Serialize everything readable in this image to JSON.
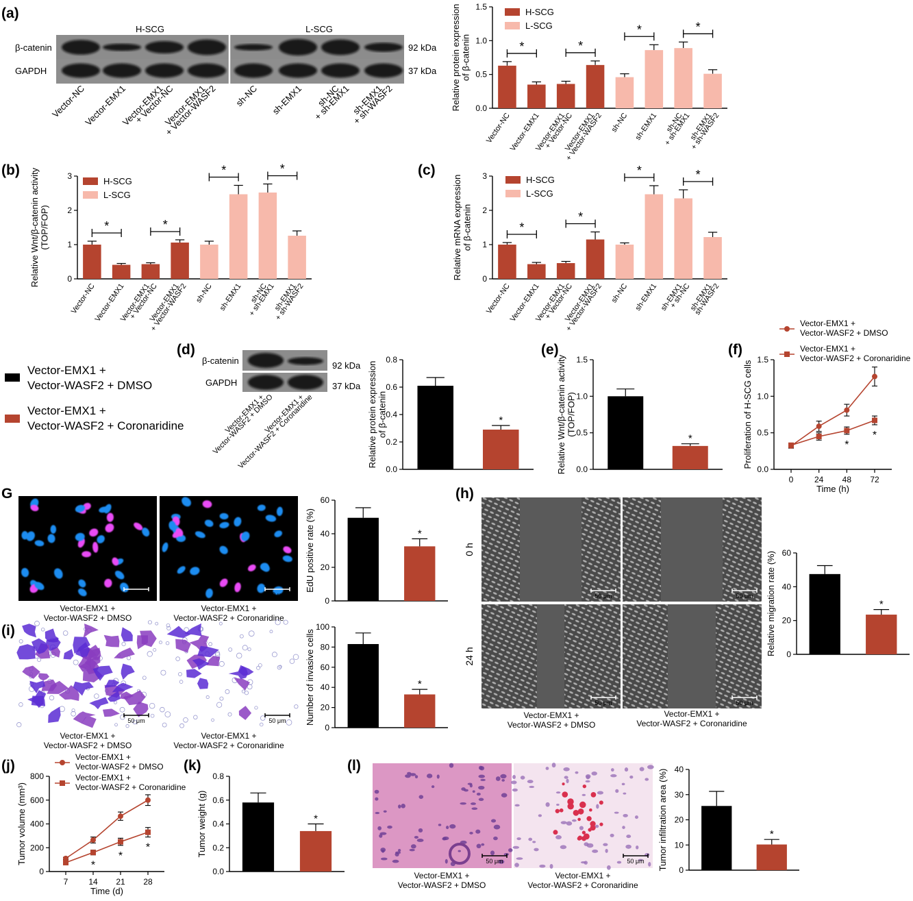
{
  "colors": {
    "h_scg": "#b5442f",
    "l_scg": "#f7b9ab",
    "dmso": "#000000",
    "cor": "#b5442f"
  },
  "panels": {
    "a": {
      "letter": "(a)",
      "blot": {
        "groups": [
          "H-SCG",
          "L-SCG"
        ],
        "proteins": [
          "β-catenin",
          "GAPDH"
        ],
        "weights": [
          "92 kDa",
          "37 kDa"
        ],
        "lanes": [
          "Vector-NC",
          "Vector-EMX1",
          "Vector-EMX1\n+ Vector-NC",
          "Vector-EMX1\n+ Vector-WASF2",
          "sh-NC",
          "sh-EMX1",
          "sh-NC\n+ sh-EMX1",
          "sh-EMX1\n+ sh-WASF2"
        ]
      }
    },
    "b": {
      "letter": "(b)"
    },
    "c": {
      "letter": "(c)"
    },
    "d": {
      "letter": "(d)",
      "blot": {
        "proteins": [
          "β-catenin",
          "GAPDH"
        ],
        "weights": [
          "92 kDa",
          "37 kDa"
        ],
        "lanes": [
          "Vector-EMX1 +\nVector-WASF2 + DMSO",
          "Vector-EMX1 +\nVector-WASF2 + Coronaridine"
        ]
      }
    },
    "e": {
      "letter": "(e)"
    },
    "f": {
      "letter": "(f)"
    },
    "G": {
      "letter": "G"
    },
    "h": {
      "letter": "(h)",
      "rows": [
        "0 h",
        "24 h"
      ]
    },
    "i": {
      "letter": "(i)"
    },
    "j": {
      "letter": "(j)"
    },
    "k": {
      "letter": "(k)"
    },
    "l": {
      "letter": "(l)"
    }
  },
  "legend_big": [
    {
      "line1": "Vector-EMX1 +",
      "line2": "Vector-WASF2 + DMSO"
    },
    {
      "line1": "Vector-EMX1 +",
      "line2": "Vector-WASF2 + Coronaridine"
    }
  ],
  "image_captions": {
    "dmso": [
      "Vector-EMX1 +",
      "Vector-WASF2 + DMSO"
    ],
    "cor": [
      "Vector-EMX1 +",
      "Vector-WASF2 + Coronaridine"
    ]
  },
  "scale_bar": "50 μm",
  "chart_data": [
    {
      "panel": "a",
      "type": "bar",
      "ylabel": "Relative protein expression\nof β-catenin",
      "ylim": [
        0,
        1.5
      ],
      "yticks": [
        "0.0",
        "0.5",
        "1.0",
        "1.5"
      ],
      "categories": [
        "Vector-NC",
        "Vector-EMX1",
        "Vector-EMX1\n+ Vector-NC",
        "Vector-EMX1\n+ Vector-WASF2",
        "sh-NC",
        "sh-EMX1",
        "sh-NC\n+ sh-EMX1",
        "sh-EMX1\n+ sh-WASF2"
      ],
      "values": [
        0.63,
        0.35,
        0.36,
        0.64,
        0.46,
        0.86,
        0.89,
        0.51
      ],
      "errors": [
        0.06,
        0.04,
        0.04,
        0.06,
        0.05,
        0.08,
        0.09,
        0.06
      ],
      "legend": [
        "H-SCG",
        "L-SCG"
      ],
      "sig": [
        [
          0,
          1
        ],
        [
          2,
          3
        ],
        [
          4,
          5
        ],
        [
          6,
          7
        ]
      ]
    },
    {
      "panel": "b",
      "type": "bar",
      "ylabel": "Relative Wnt/β-catenin activity\n(TOP/FOP)",
      "ylim": [
        0,
        3
      ],
      "yticks": [
        "0",
        "1",
        "2",
        "3"
      ],
      "categories": [
        "Vector-NC",
        "Vector-EMX1",
        "Vector-EMX1\n+ Vector-NC",
        "Vector-EMX1\n+ Vector-WASF2",
        "sh-NC",
        "sh-EMX1",
        "sh-NC\n+ sh-EMX1",
        "sh-EMX1\n+ sh-WASF2"
      ],
      "values": [
        1.0,
        0.41,
        0.43,
        1.06,
        1.0,
        2.47,
        2.52,
        1.26
      ],
      "errors": [
        0.1,
        0.04,
        0.04,
        0.08,
        0.1,
        0.26,
        0.25,
        0.14
      ],
      "legend": [
        "H-SCG",
        "L-SCG"
      ],
      "sig": [
        [
          0,
          1
        ],
        [
          2,
          3
        ],
        [
          4,
          5
        ],
        [
          6,
          7
        ]
      ]
    },
    {
      "panel": "c",
      "type": "bar",
      "ylabel": "Relative mRNA expression\nof β-catenin",
      "ylim": [
        0,
        3
      ],
      "yticks": [
        "0",
        "1",
        "2",
        "3"
      ],
      "categories": [
        "Vector-NC",
        "Vector-EMX1",
        "Vector-EMX1\n+ Vector-NC",
        "Vector-EMX1\n+ Vector-WASF2",
        "sh-NC",
        "sh-EMX1",
        "sh-EMX1\n+ sh-NC",
        "sh-EMX1\nsh-WASF2"
      ],
      "values": [
        1.0,
        0.43,
        0.46,
        1.15,
        1.0,
        2.47,
        2.35,
        1.22
      ],
      "errors": [
        0.06,
        0.05,
        0.05,
        0.22,
        0.05,
        0.25,
        0.25,
        0.14
      ],
      "legend": [
        "H-SCG",
        "L-SCG"
      ],
      "sig": [
        [
          0,
          1
        ],
        [
          2,
          3
        ],
        [
          4,
          5
        ],
        [
          6,
          7
        ]
      ]
    },
    {
      "panel": "d",
      "type": "bar",
      "ylabel": "Relative protein expression\nof β-catenin",
      "ylim": [
        0,
        0.8
      ],
      "yticks": [
        "0.0",
        "0.2",
        "0.4",
        "0.6",
        "0.8"
      ],
      "values": [
        0.61,
        0.29
      ],
      "errors": [
        0.06,
        0.03
      ]
    },
    {
      "panel": "e",
      "type": "bar",
      "ylabel": "Relative Wnt/β-catenin activity\n(TOP/FOP)",
      "ylim": [
        0,
        1.5
      ],
      "yticks": [
        "0.0",
        "0.5",
        "1.0",
        "1.5"
      ],
      "values": [
        1.0,
        0.32
      ],
      "errors": [
        0.1,
        0.03
      ]
    },
    {
      "panel": "f",
      "type": "line",
      "xlabel": "Time (h)",
      "ylabel": "Proliferation of H-SCG cells",
      "x": [
        0,
        24,
        48,
        72
      ],
      "ylim": [
        0,
        1.5
      ],
      "yticks": [
        "0.0",
        "0.5",
        "1.0",
        "1.5"
      ],
      "series": [
        {
          "name": "Vector-EMX1 +\nVector-WASF2 + DMSO",
          "values": [
            0.32,
            0.59,
            0.81,
            1.27
          ],
          "errors": [
            0.03,
            0.07,
            0.08,
            0.13
          ]
        },
        {
          "name": "Vector-EMX1 +\nVector-WASF2 + Coronaridine",
          "values": [
            0.33,
            0.45,
            0.53,
            0.67
          ],
          "errors": [
            0.03,
            0.05,
            0.05,
            0.06
          ]
        }
      ],
      "sig_x": [
        48,
        72
      ]
    },
    {
      "panel": "G",
      "type": "bar",
      "ylabel": "EdU positive rate (%)",
      "ylim": [
        0,
        60
      ],
      "yticks": [
        "0",
        "20",
        "40",
        "60"
      ],
      "values": [
        49.5,
        32.5
      ],
      "errors": [
        6,
        4.5
      ]
    },
    {
      "panel": "h",
      "type": "bar",
      "ylabel": "Relative migration rate (%)",
      "ylim": [
        0,
        60
      ],
      "yticks": [
        "0",
        "20",
        "40",
        "60"
      ],
      "values": [
        47.5,
        23.5
      ],
      "errors": [
        5,
        3
      ]
    },
    {
      "panel": "i",
      "type": "bar",
      "ylabel": "Number of invasive cells",
      "ylim": [
        0,
        100
      ],
      "yticks": [
        "0",
        "20",
        "40",
        "60",
        "80",
        "100"
      ],
      "values": [
        83,
        33
      ],
      "errors": [
        11,
        5
      ]
    },
    {
      "panel": "j",
      "type": "line",
      "xlabel": "Time (d)",
      "ylabel": "Tumor volume (mm³)",
      "x": [
        7,
        14,
        21,
        28
      ],
      "ylim": [
        0,
        800
      ],
      "yticks": [
        "0",
        "200",
        "400",
        "600",
        "800"
      ],
      "series": [
        {
          "name": "Vector-EMX1 +\nVector-WASF2 + DMSO",
          "values": [
            110,
            265,
            465,
            600
          ],
          "errors": [
            10,
            25,
            35,
            45
          ]
        },
        {
          "name": "Vector-EMX1 +\nVector-WASF2 + Coronaridine",
          "values": [
            75,
            160,
            250,
            330
          ],
          "errors": [
            8,
            20,
            30,
            40
          ]
        }
      ],
      "sig_x": [
        14,
        21,
        28
      ]
    },
    {
      "panel": "k",
      "type": "bar",
      "ylabel": "Tumor weight (g)",
      "ylim": [
        0,
        0.8
      ],
      "yticks": [
        "0.0",
        "0.2",
        "0.4",
        "0.6",
        "0.8"
      ],
      "values": [
        0.58,
        0.34
      ],
      "errors": [
        0.08,
        0.06
      ]
    },
    {
      "panel": "l",
      "type": "bar",
      "ylabel": "Tumor infiltration area (%)",
      "ylim": [
        0,
        40
      ],
      "yticks": [
        "0",
        "10",
        "20",
        "30",
        "40"
      ],
      "values": [
        25.5,
        10.2
      ],
      "errors": [
        5.8,
        2
      ]
    }
  ]
}
